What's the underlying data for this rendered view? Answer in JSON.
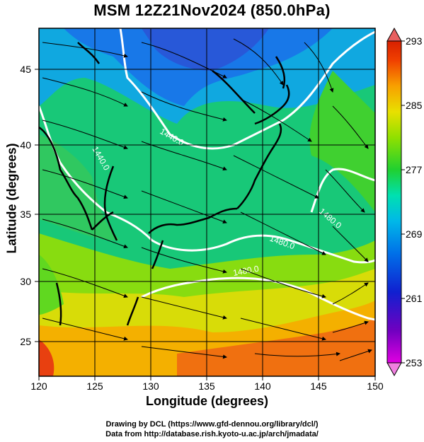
{
  "title": "MSM 12Z21Nov2024 (850.0hPa)",
  "xlabel": "Longitude (degrees)",
  "ylabel": "Latitude  (degrees)",
  "x_ticks": [
    {
      "value": 120,
      "label": "120"
    },
    {
      "value": 125,
      "label": "125"
    },
    {
      "value": 130,
      "label": "130"
    },
    {
      "value": 135,
      "label": "135"
    },
    {
      "value": 140,
      "label": "140"
    },
    {
      "value": 145,
      "label": "145"
    },
    {
      "value": 150,
      "label": "150"
    }
  ],
  "y_ticks": [
    {
      "value": 25,
      "label": "25"
    },
    {
      "value": 30,
      "label": "30"
    },
    {
      "value": 35,
      "label": "35"
    },
    {
      "value": 40,
      "label": "40"
    },
    {
      "value": 45,
      "label": "45"
    }
  ],
  "xlim": [
    120,
    150
  ],
  "ylim": [
    22.5,
    47.5
  ],
  "colorbar": {
    "range": [
      253,
      293
    ],
    "ticks": [
      {
        "value": 293,
        "label": "293"
      },
      {
        "value": 285,
        "label": "285"
      },
      {
        "value": 277,
        "label": "277"
      },
      {
        "value": 269,
        "label": "269"
      },
      {
        "value": 261,
        "label": "261"
      },
      {
        "value": 253,
        "label": "253"
      }
    ],
    "colors": [
      "#e000e0",
      "#7000c0",
      "#1020d0",
      "#0070e8",
      "#00b8e8",
      "#00e0b0",
      "#20d030",
      "#90e000",
      "#e8e000",
      "#f8a000",
      "#f04000",
      "#d82000"
    ]
  },
  "contour_labels": [
    "1440.0",
    "1440.0",
    "1480.0",
    "1480.0",
    "1480.0"
  ],
  "credits": {
    "line1": "Drawing by DCL (https://www.gfd-dennou.org/library/dcl/)",
    "line2": "Data from http://database.rish.kyoto-u.ac.jp/arch/jmadata/"
  }
}
